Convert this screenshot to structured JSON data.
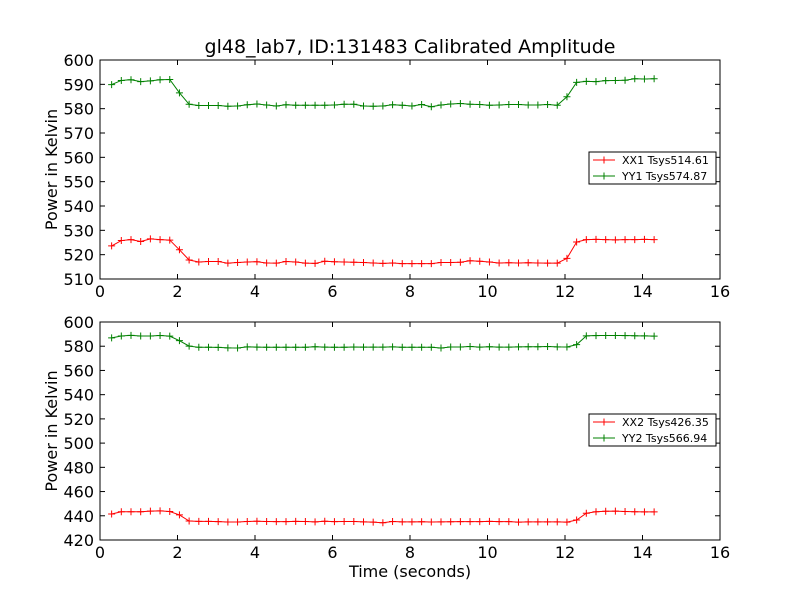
{
  "title": "gl48_lab7, ID:131483 Calibrated Amplitude",
  "colors": {
    "red": "#ff0000",
    "green": "#008000"
  },
  "chart_data": [
    {
      "type": "line",
      "ylabel": "Power in Kelvin",
      "xlabel": "",
      "xlim": [
        0,
        16
      ],
      "ylim": [
        510,
        600
      ],
      "xticks": [
        0,
        2,
        4,
        6,
        8,
        10,
        12,
        14,
        16
      ],
      "yticks": [
        510,
        520,
        530,
        540,
        550,
        560,
        570,
        580,
        590,
        600
      ],
      "legend_position": "center-right",
      "x": [
        0.3,
        0.55,
        0.8,
        1.05,
        1.3,
        1.55,
        1.8,
        2.05,
        2.3,
        2.55,
        2.8,
        3.05,
        3.3,
        3.55,
        3.8,
        4.05,
        4.3,
        4.55,
        4.8,
        5.05,
        5.3,
        5.55,
        5.8,
        6.05,
        6.3,
        6.55,
        6.8,
        7.05,
        7.3,
        7.55,
        7.8,
        8.05,
        8.3,
        8.55,
        8.8,
        9.05,
        9.3,
        9.55,
        9.8,
        10.05,
        10.3,
        10.55,
        10.8,
        11.05,
        11.3,
        11.55,
        11.8,
        12.05,
        12.3,
        12.55,
        12.8,
        13.05,
        13.3,
        13.55,
        13.8,
        14.05,
        14.3
      ],
      "series": [
        {
          "name": "XX1 Tsys514.61",
          "color": "#ff0000",
          "values": [
            523.6,
            525.8,
            526.2,
            525.4,
            526.5,
            526.2,
            526.0,
            522.0,
            517.8,
            517.0,
            517.2,
            517.2,
            516.5,
            516.8,
            517.0,
            517.1,
            516.6,
            516.5,
            517.2,
            517.0,
            516.5,
            516.4,
            517.3,
            517.1,
            517.0,
            516.9,
            516.8,
            516.6,
            516.4,
            516.6,
            516.3,
            516.3,
            516.3,
            516.3,
            516.8,
            516.8,
            516.9,
            517.5,
            517.3,
            517.0,
            516.6,
            516.7,
            516.6,
            516.7,
            516.6,
            516.5,
            516.5,
            518.5,
            525.2,
            526.2,
            526.3,
            526.2,
            526.1,
            526.2,
            526.2,
            526.3,
            526.2
          ]
        },
        {
          "name": "YY1 Tsys574.87",
          "color": "#008000",
          "values": [
            589.9,
            591.6,
            591.9,
            591.1,
            591.4,
            591.9,
            592.0,
            586.5,
            581.8,
            581.3,
            581.3,
            581.3,
            581.0,
            581.1,
            581.6,
            581.9,
            581.5,
            581.1,
            581.6,
            581.4,
            581.4,
            581.4,
            581.4,
            581.5,
            581.8,
            581.8,
            581.1,
            581.0,
            581.1,
            581.6,
            581.4,
            581.1,
            581.7,
            580.8,
            581.5,
            581.9,
            582.1,
            581.8,
            581.7,
            581.4,
            581.5,
            581.7,
            581.7,
            581.5,
            581.5,
            581.7,
            581.4,
            584.9,
            590.8,
            591.2,
            591.1,
            591.5,
            591.6,
            591.7,
            592.3,
            592.2,
            592.3
          ]
        }
      ]
    },
    {
      "type": "line",
      "ylabel": "Power in Kelvin",
      "xlabel": "Time (seconds)",
      "xlim": [
        0,
        16
      ],
      "ylim": [
        420,
        600
      ],
      "xticks": [
        0,
        2,
        4,
        6,
        8,
        10,
        12,
        14,
        16
      ],
      "yticks": [
        420,
        440,
        460,
        480,
        500,
        520,
        540,
        560,
        580,
        600
      ],
      "legend_position": "center-right",
      "x": [
        0.3,
        0.55,
        0.8,
        1.05,
        1.3,
        1.55,
        1.8,
        2.05,
        2.3,
        2.55,
        2.8,
        3.05,
        3.3,
        3.55,
        3.8,
        4.05,
        4.3,
        4.55,
        4.8,
        5.05,
        5.3,
        5.55,
        5.8,
        6.05,
        6.3,
        6.55,
        6.8,
        7.05,
        7.3,
        7.55,
        7.8,
        8.05,
        8.3,
        8.55,
        8.8,
        9.05,
        9.3,
        9.55,
        9.8,
        10.05,
        10.3,
        10.55,
        10.8,
        11.05,
        11.3,
        11.55,
        11.8,
        12.05,
        12.3,
        12.55,
        12.8,
        13.05,
        13.3,
        13.55,
        13.8,
        14.05,
        14.3
      ],
      "series": [
        {
          "name": "XX2 Tsys426.35",
          "color": "#ff0000",
          "values": [
            441.5,
            443.3,
            443.3,
            443.3,
            443.8,
            444.0,
            443.5,
            440.7,
            435.7,
            435.4,
            435.4,
            435.2,
            434.9,
            434.9,
            435.3,
            435.5,
            435.3,
            435.2,
            435.2,
            435.4,
            435.3,
            435.0,
            435.5,
            435.2,
            435.3,
            435.3,
            435.0,
            434.8,
            434.2,
            435.3,
            435.0,
            435.0,
            435.1,
            434.9,
            435.0,
            435.1,
            435.2,
            435.2,
            435.2,
            435.4,
            435.2,
            435.2,
            434.8,
            435.0,
            435.0,
            435.0,
            435.0,
            434.8,
            436.5,
            442.1,
            443.3,
            443.7,
            443.8,
            443.5,
            443.3,
            443.2,
            443.2
          ]
        },
        {
          "name": "YY2 Tsys566.94",
          "color": "#008000",
          "values": [
            586.9,
            588.4,
            589.0,
            588.4,
            588.4,
            588.9,
            588.3,
            584.6,
            580.1,
            579.1,
            579.1,
            579.0,
            578.6,
            578.5,
            579.5,
            579.3,
            579.2,
            579.1,
            579.1,
            579.2,
            579.1,
            579.6,
            579.3,
            579.1,
            579.1,
            579.4,
            579.3,
            579.3,
            579.3,
            579.5,
            579.1,
            579.2,
            579.1,
            579.1,
            578.5,
            579.4,
            579.4,
            579.8,
            579.3,
            579.6,
            579.3,
            579.3,
            579.5,
            579.6,
            579.6,
            579.8,
            579.5,
            579.4,
            581.3,
            588.5,
            588.8,
            588.9,
            588.9,
            588.8,
            588.6,
            588.5,
            588.3
          ]
        }
      ]
    }
  ]
}
